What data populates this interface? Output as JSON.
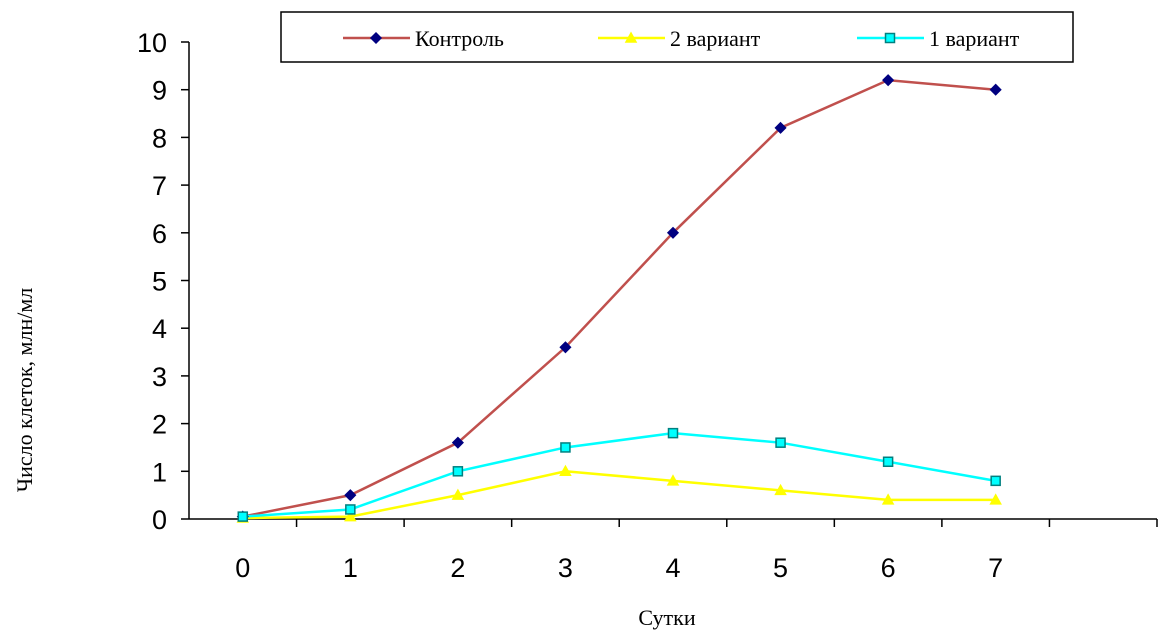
{
  "chart_data": {
    "type": "line",
    "x_label": "Сутки",
    "y_label": "Число клеток, млн/мл",
    "categories": [
      "0",
      "1",
      "2",
      "3",
      "4",
      "5",
      "6",
      "7",
      null
    ],
    "series": [
      {
        "name": "Контроль",
        "color": "#c0504d",
        "marker": "diamond",
        "marker_color": "#000080",
        "values": [
          0.05,
          0.5,
          1.6,
          3.6,
          6.0,
          8.2,
          9.2,
          9.0,
          null
        ]
      },
      {
        "name": "2 вариант",
        "color": "#ffff00",
        "marker": "triangle",
        "marker_color": "#ffff00",
        "values": [
          0.02,
          0.05,
          0.5,
          1.0,
          0.8,
          0.6,
          0.4,
          0.4,
          null
        ]
      },
      {
        "name": "1 вариант",
        "color": "#00ffff",
        "marker": "square",
        "marker_color": "#00ffff",
        "values": [
          0.05,
          0.2,
          1.0,
          1.5,
          1.8,
          1.6,
          1.2,
          0.8,
          null
        ]
      }
    ],
    "ylim": [
      0,
      10
    ],
    "yticks": [
      0,
      1,
      2,
      3,
      4,
      5,
      6,
      7,
      8,
      9,
      10
    ],
    "grid": false,
    "legend": "top"
  }
}
